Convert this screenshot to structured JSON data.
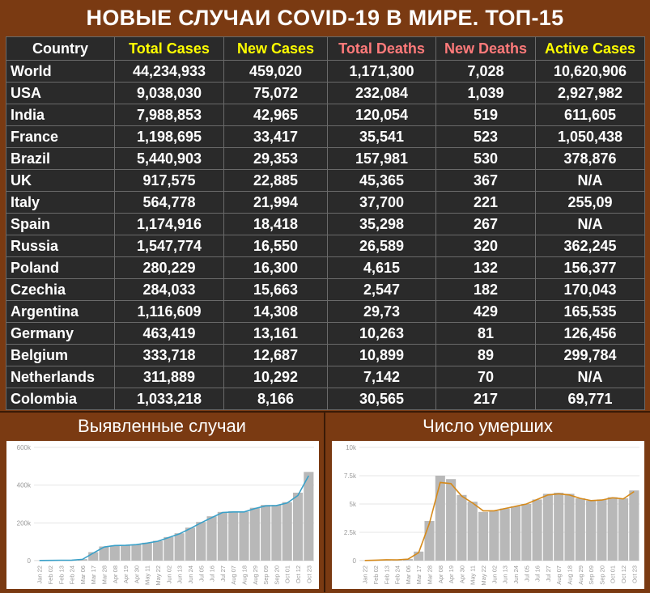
{
  "title": "НОВЫЕ СЛУЧАИ COVID-19 В МИРЕ. ТОП-15",
  "table": {
    "headers": [
      "Country",
      "Total Cases",
      "New Cases",
      "Total Deaths",
      "New Deaths",
      "Active Cases"
    ],
    "rows": [
      [
        "World",
        "44,234,933",
        "459,020",
        "1,171,300",
        "7,028",
        "10,620,906"
      ],
      [
        "USA",
        "9,038,030",
        "75,072",
        "232,084",
        "1,039",
        "2,927,982"
      ],
      [
        "India",
        "7,988,853",
        "42,965",
        "120,054",
        "519",
        "611,605"
      ],
      [
        "France",
        "1,198,695",
        "33,417",
        "35,541",
        "523",
        "1,050,438"
      ],
      [
        "Brazil",
        "5,440,903",
        "29,353",
        "157,981",
        "530",
        "378,876"
      ],
      [
        "UK",
        "917,575",
        "22,885",
        "45,365",
        "367",
        "N/A"
      ],
      [
        "Italy",
        "564,778",
        "21,994",
        "37,700",
        "221",
        "255,09"
      ],
      [
        "Spain",
        "1,174,916",
        "18,418",
        "35,298",
        "267",
        "N/A"
      ],
      [
        "Russia",
        "1,547,774",
        "16,550",
        "26,589",
        "320",
        "362,245"
      ],
      [
        "Poland",
        "280,229",
        "16,300",
        "4,615",
        "132",
        "156,377"
      ],
      [
        "Czechia",
        "284,033",
        "15,663",
        "2,547",
        "182",
        "170,043"
      ],
      [
        "Argentina",
        "1,116,609",
        "14,308",
        "29,73",
        "429",
        "165,535"
      ],
      [
        "Germany",
        "463,419",
        "13,161",
        "10,263",
        "81",
        "126,456"
      ],
      [
        "Belgium",
        "333,718",
        "12,687",
        "10,899",
        "89",
        "299,784"
      ],
      [
        "Netherlands",
        "311,889",
        "10,292",
        "7,142",
        "70",
        "N/A"
      ],
      [
        "Colombia",
        "1,033,218",
        "8,166",
        "30,565",
        "217",
        "69,771"
      ]
    ]
  },
  "colors": {
    "frame": "#7a3a12",
    "cell_bg": "#2a2a2a",
    "header_yellow": "#ffff00",
    "header_red": "#ff7a7a",
    "cases_line": "#3aa0c8",
    "deaths_line": "#d58a1c",
    "bars": "#b8b8b8"
  },
  "chart_data": [
    {
      "type": "bar",
      "title": "Выявленные случаи",
      "y_ticks": [
        "0",
        "200k",
        "400k",
        "600k"
      ],
      "ylim": [
        0,
        600000
      ],
      "x_ticks": [
        "Jan 22",
        "Feb 02",
        "Feb 13",
        "Feb 24",
        "Mar 06",
        "Mar 17",
        "Mar 28",
        "Apr 08",
        "Apr 19",
        "Apr 30",
        "May 11",
        "May 22",
        "Jun 02",
        "Jun 13",
        "Jun 24",
        "Jul 05",
        "Jul 16",
        "Jul 27",
        "Aug 07",
        "Aug 18",
        "Aug 29",
        "Sep 09",
        "Sep 20",
        "Oct 01",
        "Oct 12",
        "Oct 23"
      ],
      "bar_values": [
        1000,
        2000,
        2000,
        3000,
        8000,
        45000,
        75000,
        80000,
        82000,
        86000,
        95000,
        105000,
        125000,
        145000,
        175000,
        205000,
        235000,
        258000,
        262000,
        260000,
        280000,
        295000,
        295000,
        310000,
        360000,
        470000
      ],
      "moving_average": [
        800,
        1500,
        2000,
        2500,
        7000,
        40000,
        72000,
        80000,
        81000,
        85000,
        93000,
        103000,
        122000,
        142000,
        170000,
        200000,
        228000,
        255000,
        258000,
        258000,
        276000,
        290000,
        292000,
        305000,
        345000,
        450000
      ],
      "grid": true
    },
    {
      "type": "bar",
      "title": "Число умерших",
      "y_ticks": [
        "0",
        "2.5k",
        "5k",
        "7.5k",
        "10k"
      ],
      "ylim": [
        0,
        10000
      ],
      "x_ticks": [
        "Jan 22",
        "Feb 02",
        "Feb 13",
        "Feb 24",
        "Mar 06",
        "Mar 17",
        "Mar 28",
        "Apr 08",
        "Apr 19",
        "Apr 30",
        "May 11",
        "May 22",
        "Jun 02",
        "Jun 13",
        "Jun 24",
        "Jul 05",
        "Jul 16",
        "Jul 27",
        "Aug 07",
        "Aug 18",
        "Aug 29",
        "Sep 09",
        "Sep 20",
        "Oct 01",
        "Oct 12",
        "Oct 23"
      ],
      "bar_values": [
        20,
        50,
        100,
        80,
        150,
        800,
        3500,
        7500,
        7200,
        5800,
        5200,
        4300,
        4400,
        4600,
        4800,
        5000,
        5400,
        5900,
        6000,
        5900,
        5500,
        5300,
        5400,
        5600,
        5500,
        6200
      ],
      "moving_average": [
        15,
        40,
        80,
        70,
        130,
        700,
        3300,
        6900,
        6800,
        5700,
        5100,
        4400,
        4400,
        4600,
        4800,
        5000,
        5400,
        5800,
        5900,
        5800,
        5500,
        5300,
        5350,
        5550,
        5450,
        6100
      ],
      "grid": true
    }
  ]
}
